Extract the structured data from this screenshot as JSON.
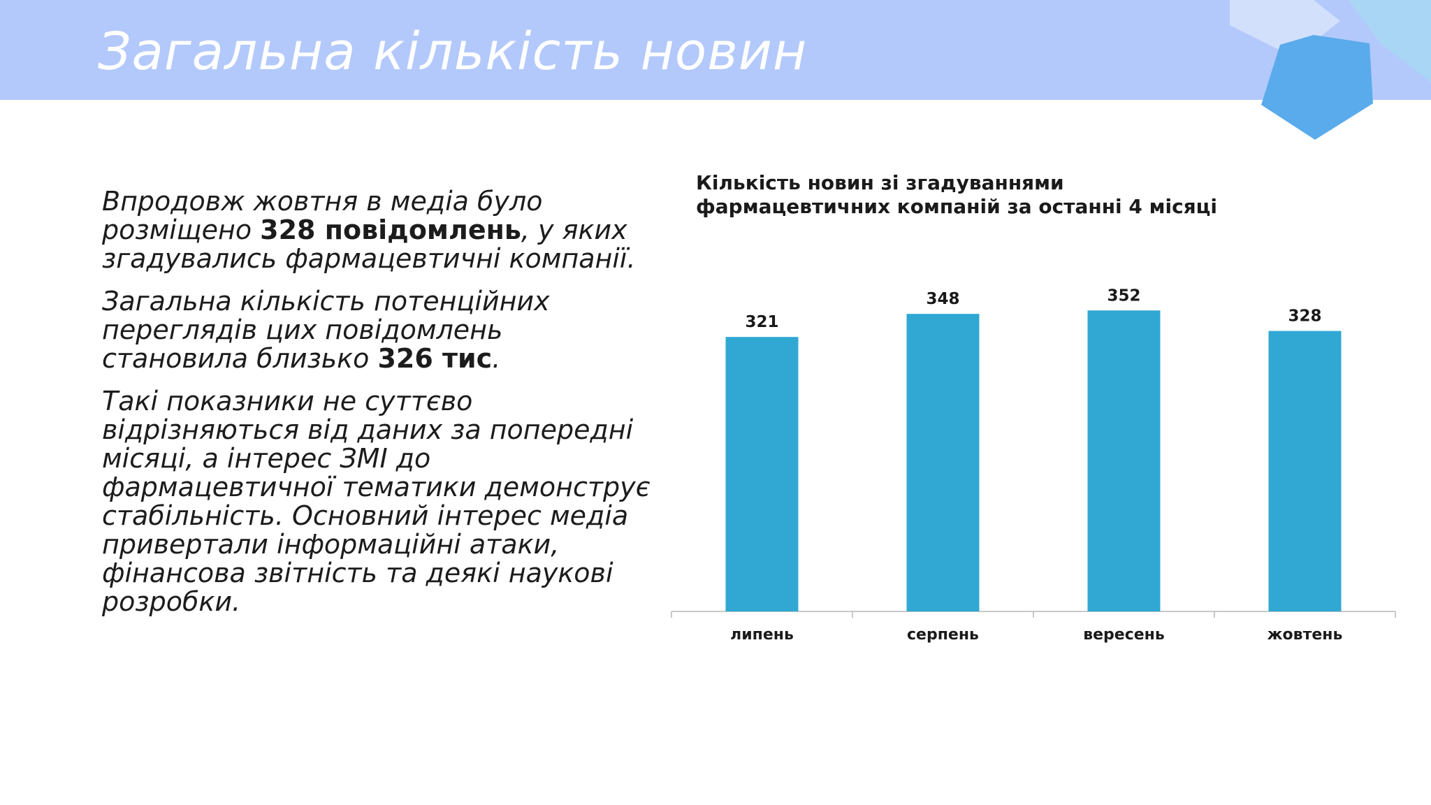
{
  "slide": {
    "title": "Загальна кількість новин"
  },
  "body": {
    "p1_pre": "Впродовж жовтня в медіа було розміщено ",
    "p1_bold": "328 повідомлень",
    "p1_post": ", у яких згадувались фармацевтичні компанії.",
    "p2_pre": "Загальна кількість потенційних переглядів цих повідомлень становила близько ",
    "p2_bold": "326 тис",
    "p2_post": ".",
    "p3": "Такі показники не суттєво відрізняються від даних за попередні місяці, а інтерес ЗМІ до фармацевтичної тематики демонструє стабільність. Основний інтерес медіа привертали інформаційні атаки, фінансова звітність та деякі наукові розробки."
  },
  "colors": {
    "header_band": "#b3c9fc",
    "bar": "#31a8d3",
    "axis": "#c8c8c8",
    "deco_light": "#d3e0fc",
    "deco_mid": "#9ec7f2",
    "deco_dark": "#5aabec"
  },
  "chart_data": {
    "type": "bar",
    "title": "Кількість новин зі згадуваннями фармацевтичних  компаній за останні 4 місяці",
    "categories": [
      "липень",
      "серпень",
      "вересень",
      "жовтень"
    ],
    "values": [
      321,
      348,
      352,
      328
    ],
    "data_labels": [
      "321",
      "348",
      "352",
      "328"
    ],
    "ylim": [
      0,
      380
    ],
    "grid": false,
    "legend": "none"
  }
}
